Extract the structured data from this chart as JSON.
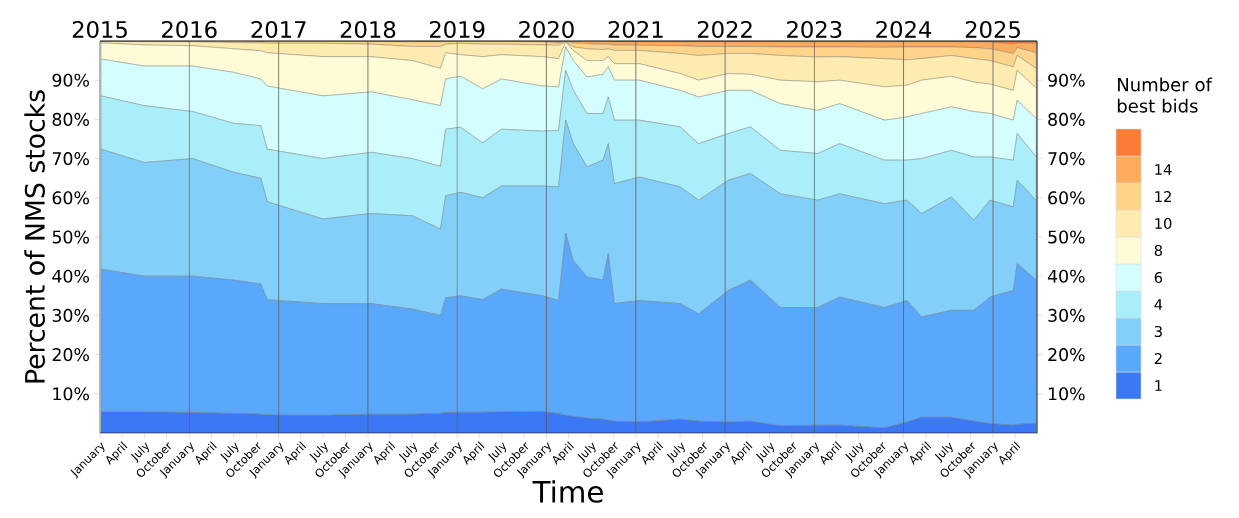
{
  "chart_data": {
    "type": "area",
    "stacked": true,
    "xlabel": "Time",
    "ylabel": "Percent of NMS stocks",
    "legend_title": "Number of best bids",
    "legend": "right",
    "x": [
      "2015-01-05",
      "2015-07-01",
      "2016-01-15",
      "2016-07-01",
      "2016-10-20",
      "2016-11-15",
      "2017-07-01",
      "2018-01-15",
      "2018-07-02",
      "2018-10-25",
      "2018-11-15",
      "2019-01-15",
      "2019-04-15",
      "2019-07-01",
      "2019-12-15",
      "2020-02-20",
      "2020-03-20",
      "2020-04-20",
      "2020-06-15",
      "2020-08-20",
      "2020-09-10",
      "2020-10-05",
      "2021-01-15",
      "2021-07-01",
      "2021-09-15",
      "2022-01-15",
      "2022-04-15",
      "2022-08-15",
      "2023-01-15",
      "2023-04-15",
      "2023-10-15",
      "2024-01-15",
      "2024-03-15",
      "2024-07-15",
      "2024-10-15",
      "2024-12-20",
      "2025-03-25",
      "2025-04-10",
      "2025-06-27"
    ],
    "series": [
      {
        "name": "1",
        "color": "#3a78f5",
        "values": [
          5.4,
          5.4,
          5.2,
          5,
          4.8,
          4.6,
          4.5,
          4.8,
          4.8,
          5,
          5.2,
          5.3,
          5.3,
          5.4,
          5.5,
          4.9,
          4.5,
          4.2,
          3.8,
          3.5,
          3.3,
          3,
          2.8,
          3.5,
          3,
          2.8,
          3,
          1.8,
          2,
          2,
          1.3,
          2.8,
          4,
          4,
          3,
          2.4,
          2,
          2.2,
          2.5
        ]
      },
      {
        "name": "2",
        "color": "#5aa8fb",
        "values": [
          36.4,
          34.6,
          34.8,
          34,
          33.2,
          29.4,
          28.5,
          28.2,
          26.8,
          25,
          29.3,
          29.7,
          28.7,
          31.3,
          29.5,
          28.9,
          46.4,
          39.8,
          36,
          35.5,
          42.4,
          30,
          31,
          29.5,
          27.4,
          33.6,
          36,
          30.2,
          30,
          32.7,
          30.7,
          31,
          25.6,
          27.3,
          28.3,
          32.3,
          34.4,
          41,
          36.5
        ]
      },
      {
        "name": "3",
        "color": "#82d0fa",
        "values": [
          30.6,
          29,
          30,
          27.5,
          27,
          25,
          21.6,
          23,
          23.8,
          22,
          26,
          26.4,
          26,
          26.3,
          28,
          29,
          28.9,
          29.8,
          28.1,
          30.6,
          28.1,
          30.6,
          31.5,
          29.8,
          29,
          28.1,
          27.2,
          29,
          27.4,
          26.3,
          26.5,
          25.6,
          26.4,
          28.9,
          23,
          24.7,
          21.3,
          21.3,
          20.3
        ]
      },
      {
        "name": "4",
        "color": "#aaeefa",
        "values": [
          13.6,
          14.5,
          12,
          12.5,
          13.4,
          13.4,
          15.4,
          15.6,
          14.6,
          16,
          17,
          16.6,
          14,
          14.5,
          14,
          14.4,
          12.7,
          13.6,
          13.6,
          11.9,
          11.9,
          16.2,
          14.5,
          15.3,
          14.4,
          11.9,
          11.9,
          11.1,
          11.9,
          12.8,
          11.1,
          10.2,
          14,
          11.9,
          16.1,
          11,
          11.9,
          11.9,
          11.1
        ]
      },
      {
        "name": "6",
        "color": "#d4fdfd",
        "values": [
          9.4,
          10.1,
          11.6,
          13,
          11.9,
          16.1,
          16,
          15.4,
          15,
          15.5,
          12.8,
          13,
          13.8,
          12.8,
          11.5,
          11.1,
          6,
          7.6,
          9.3,
          10,
          7.7,
          10.2,
          10.2,
          9.3,
          11.9,
          11,
          9.3,
          11.9,
          11,
          10.2,
          10.2,
          11,
          11.5,
          11.1,
          11.6,
          11.1,
          10.2,
          8.5,
          9.8
        ]
      },
      {
        "name": "8",
        "color": "#fefbd6",
        "values": [
          4.1,
          5.4,
          5.2,
          6,
          7.2,
          8.5,
          10,
          9,
          10,
          9.5,
          6.7,
          5.5,
          8.2,
          6.2,
          7.5,
          7.2,
          1.2,
          2.6,
          4.2,
          3.5,
          2.6,
          4.2,
          4.2,
          4.3,
          4.3,
          4.3,
          4.1,
          6,
          7.3,
          6,
          8.5,
          8.1,
          8.5,
          7.8,
          7.5,
          7.5,
          7.6,
          7.6,
          7.8
        ]
      },
      {
        "name": "10",
        "color": "#feebb0",
        "values": [
          0.4,
          0.8,
          1,
          1.6,
          2,
          2.4,
          3.4,
          3.2,
          3.6,
          5.6,
          2.2,
          2.9,
          3.2,
          2.7,
          3,
          3.4,
          0.1,
          0.9,
          3,
          2.8,
          2,
          3.4,
          3.4,
          5.1,
          6.3,
          5.1,
          5.3,
          6.3,
          6.3,
          6,
          7.2,
          6.5,
          5.5,
          5.3,
          6,
          6,
          6,
          3.8,
          5
        ]
      },
      {
        "name": "12",
        "color": "#fed38a",
        "values": [
          0.1,
          0.2,
          0.2,
          0.4,
          0.4,
          0.5,
          0.5,
          0.7,
          1.2,
          1.2,
          0.7,
          0.5,
          0.7,
          0.7,
          0.8,
          0.6,
          0.1,
          1,
          1.3,
          1.4,
          1.2,
          1.4,
          1.3,
          2,
          2.3,
          1.8,
          1.8,
          2.2,
          2.6,
          2.5,
          2.9,
          3.3,
          3,
          2.2,
          2.8,
          3,
          3.4,
          2,
          4
        ]
      },
      {
        "name": "14",
        "color": "#fdab5c",
        "values": [
          0,
          0,
          0,
          0,
          0.1,
          0.1,
          0.1,
          0.1,
          0.2,
          0.2,
          0.1,
          0.1,
          0.1,
          0.1,
          0.2,
          0.4,
          0.1,
          0.4,
          0.6,
          0.7,
          0.7,
          0.8,
          0.9,
          1,
          1.2,
          1.2,
          1.2,
          1.3,
          1.3,
          1.3,
          1.4,
          1.3,
          1.3,
          1.3,
          1.5,
          1.7,
          2.5,
          1.2,
          2.4
        ]
      },
      {
        "color": "#fc7b37",
        "values": [
          0,
          0,
          0,
          0,
          0,
          0,
          0,
          0,
          0,
          0,
          0,
          0,
          0,
          0,
          0,
          0.1,
          0,
          0.1,
          0.1,
          0.1,
          0.1,
          0.2,
          0.2,
          0.2,
          0.2,
          0.2,
          0.2,
          0.2,
          0.2,
          0.2,
          0.2,
          0.2,
          0.2,
          0.2,
          0.2,
          0.3,
          0.7,
          0.5,
          0.6
        ]
      }
    ],
    "xlim": [
      "2015-01-01",
      "2025-06-30"
    ],
    "xticks": [
      {
        "value": "2015-01-01",
        "label": "January"
      },
      {
        "value": "2015-04-01",
        "label": "April"
      },
      {
        "value": "2015-07-01",
        "label": "July"
      },
      {
        "value": "2015-10-01",
        "label": "October"
      },
      {
        "value": "2016-01-01",
        "label": "January"
      },
      {
        "value": "2016-04-01",
        "label": "April"
      },
      {
        "value": "2016-07-01",
        "label": "July"
      },
      {
        "value": "2016-10-01",
        "label": "October"
      },
      {
        "value": "2017-01-01",
        "label": "January"
      },
      {
        "value": "2017-04-01",
        "label": "April"
      },
      {
        "value": "2017-07-01",
        "label": "July"
      },
      {
        "value": "2017-10-01",
        "label": "October"
      },
      {
        "value": "2018-01-01",
        "label": "January"
      },
      {
        "value": "2018-04-01",
        "label": "April"
      },
      {
        "value": "2018-07-01",
        "label": "July"
      },
      {
        "value": "2018-10-01",
        "label": "October"
      },
      {
        "value": "2019-01-01",
        "label": "January"
      },
      {
        "value": "2019-04-01",
        "label": "April"
      },
      {
        "value": "2019-07-01",
        "label": "July"
      },
      {
        "value": "2019-10-01",
        "label": "October"
      },
      {
        "value": "2020-01-01",
        "label": "January"
      },
      {
        "value": "2020-04-01",
        "label": "April"
      },
      {
        "value": "2020-07-01",
        "label": "July"
      },
      {
        "value": "2020-10-01",
        "label": "October"
      },
      {
        "value": "2021-01-01",
        "label": "January"
      },
      {
        "value": "2021-04-01",
        "label": "April"
      },
      {
        "value": "2021-07-01",
        "label": "July"
      },
      {
        "value": "2021-10-01",
        "label": "October"
      },
      {
        "value": "2022-01-01",
        "label": "January"
      },
      {
        "value": "2022-04-01",
        "label": "April"
      },
      {
        "value": "2022-07-01",
        "label": "July"
      },
      {
        "value": "2022-10-01",
        "label": "October"
      },
      {
        "value": "2023-01-01",
        "label": "January"
      },
      {
        "value": "2023-04-01",
        "label": "April"
      },
      {
        "value": "2023-07-01",
        "label": "July"
      },
      {
        "value": "2023-10-01",
        "label": "October"
      },
      {
        "value": "2024-01-01",
        "label": "January"
      },
      {
        "value": "2024-04-01",
        "label": "April"
      },
      {
        "value": "2024-07-01",
        "label": "July"
      },
      {
        "value": "2024-10-01",
        "label": "October"
      },
      {
        "value": "2025-01-01",
        "label": "January"
      },
      {
        "value": "2025-04-01",
        "label": "April"
      }
    ],
    "x2lim": [
      "2015-01-01",
      "2025-06-30"
    ],
    "x2ticks": [
      {
        "value": "2015-01-01",
        "label": "2015"
      },
      {
        "value": "2016-01-01",
        "label": "2016"
      },
      {
        "value": "2017-01-01",
        "label": "2017"
      },
      {
        "value": "2018-01-01",
        "label": "2018"
      },
      {
        "value": "2019-01-01",
        "label": "2019"
      },
      {
        "value": "2020-01-01",
        "label": "2020"
      },
      {
        "value": "2021-01-01",
        "label": "2021"
      },
      {
        "value": "2022-01-01",
        "label": "2022"
      },
      {
        "value": "2023-01-01",
        "label": "2023"
      },
      {
        "value": "2024-01-01",
        "label": "2024"
      },
      {
        "value": "2025-01-01",
        "label": "2025"
      }
    ],
    "ylim": [
      0,
      100
    ],
    "yticks": [
      {
        "value": 10,
        "label": "10%"
      },
      {
        "value": 20,
        "label": "20%"
      },
      {
        "value": 30,
        "label": "30%"
      },
      {
        "value": 40,
        "label": "40%"
      },
      {
        "value": 50,
        "label": "50%"
      },
      {
        "value": 60,
        "label": "60%"
      },
      {
        "value": 70,
        "label": "70%"
      },
      {
        "value": 80,
        "label": "80%"
      },
      {
        "value": 90,
        "label": "90%"
      }
    ],
    "y2lim": [
      0,
      100
    ],
    "y2ticks": [
      {
        "value": 10,
        "label": "10%"
      },
      {
        "value": 20,
        "label": "20%"
      },
      {
        "value": 30,
        "label": "30%"
      },
      {
        "value": 40,
        "label": "40%"
      },
      {
        "value": 50,
        "label": "50%"
      },
      {
        "value": 60,
        "label": "60%"
      },
      {
        "value": 70,
        "label": "70%"
      },
      {
        "value": 80,
        "label": "80%"
      },
      {
        "value": 90,
        "label": "90%"
      }
    ],
    "ref_lines": [
      {
        "axis": "x",
        "value": "2016-01-01",
        "color": "#5a5a5a"
      },
      {
        "axis": "x",
        "value": "2017-01-01",
        "color": "#5a5a5a"
      },
      {
        "axis": "x",
        "value": "2018-01-01",
        "color": "#5a5a5a"
      },
      {
        "axis": "x",
        "value": "2019-01-01",
        "color": "#5a5a5a"
      },
      {
        "axis": "x",
        "value": "2020-01-01",
        "color": "#5a5a5a"
      },
      {
        "axis": "x",
        "value": "2021-01-01",
        "color": "#5a5a5a"
      },
      {
        "axis": "x",
        "value": "2022-01-01",
        "color": "#5a5a5a"
      },
      {
        "axis": "x",
        "value": "2023-01-01",
        "color": "#5a5a5a"
      },
      {
        "axis": "x",
        "value": "2024-01-01",
        "color": "#5a5a5a"
      },
      {
        "axis": "x",
        "value": "2025-01-01",
        "color": "#5a5a5a"
      }
    ]
  }
}
